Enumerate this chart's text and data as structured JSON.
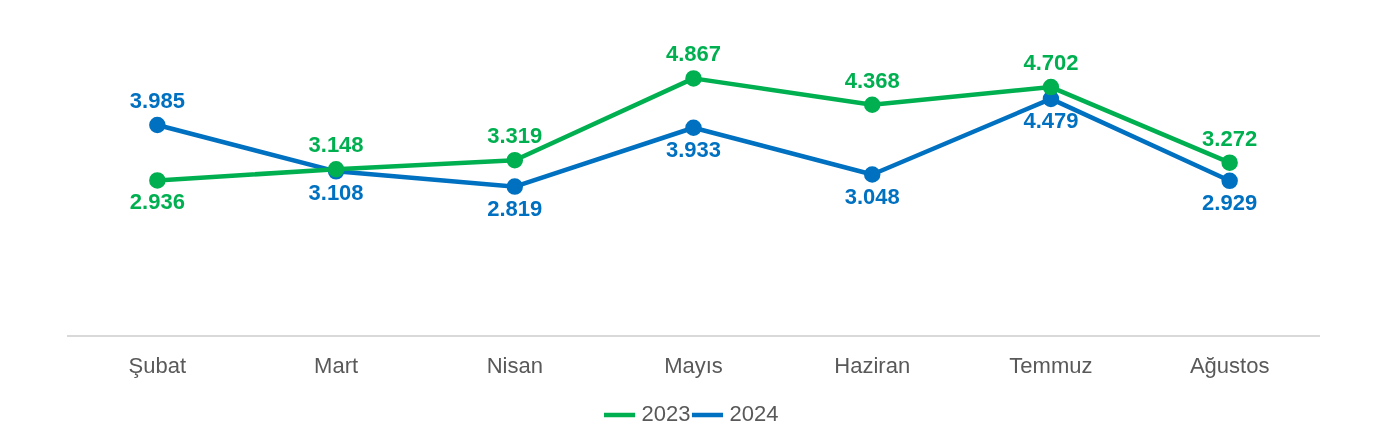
{
  "chart_data": {
    "type": "line",
    "categories": [
      "Şubat",
      "Mart",
      "Nisan",
      "Mayıs",
      "Haziran",
      "Temmuz",
      "Ağustos"
    ],
    "series": [
      {
        "name": "2023",
        "color": "#00b050",
        "values": [
          2.936,
          3.148,
          3.319,
          4.867,
          4.368,
          4.702,
          3.272
        ]
      },
      {
        "name": "2024",
        "color": "#0070c0",
        "values": [
          3.985,
          3.108,
          2.819,
          3.933,
          3.048,
          4.479,
          2.929
        ]
      }
    ],
    "tick_labels": "x",
    "grid": false,
    "legend": "bottom",
    "marker": "circle",
    "line_style": "solid",
    "data_labels": true
  }
}
